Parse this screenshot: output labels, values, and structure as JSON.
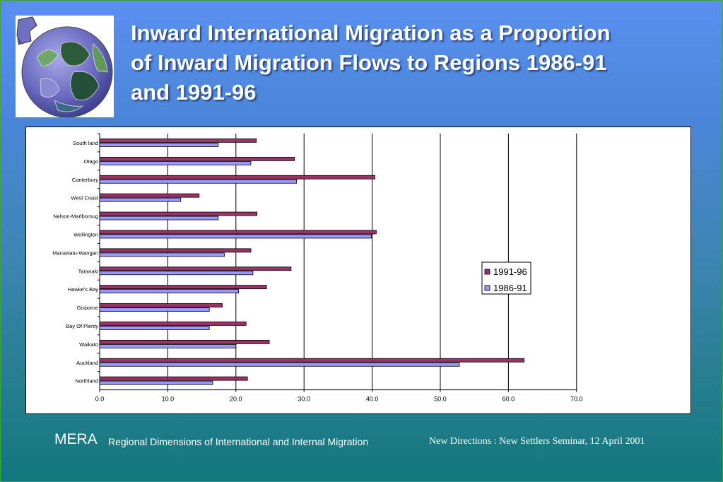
{
  "slide": {
    "title_lines": [
      "Inward International Migration as a Proportion",
      "of Inward Migration Flows to Regions 1986-91",
      "and 1991-96"
    ],
    "footer_brand": "MERA",
    "footer_subtitle": "Regional Dimensions of International and Internal Migration",
    "footer_event": "New Directions : New Settlers Seminar, 12 April 2001"
  },
  "logo": {
    "icon": "globe-puzzle-icon"
  },
  "colors": {
    "series_1991_96": "#993366",
    "series_1986_91": "#9999ff",
    "bg_top": "#5a8ff0",
    "bg_bottom": "#13787c"
  },
  "chart_data": {
    "type": "bar",
    "orientation": "horizontal",
    "categories": [
      "Southland",
      "Otago",
      "Canterbury",
      "West Coast",
      "Nelson-Marlborough",
      "Wellington",
      "Manawatu-Wanganui",
      "Taranaki",
      "Hawke's Bay",
      "Gisborne",
      "Bay Of Plenty",
      "Waikato",
      "Auckland",
      "Northland"
    ],
    "category_labels": [
      "South land",
      "Otago",
      "Canterbury",
      "West  Coast",
      "Nelson-Marlboroug",
      "Wellington",
      "Manawatu-Wangan",
      "Taranaki",
      "Hawke's Bay",
      "Gisborne",
      "Bay  Of  Plenty",
      "Waikato",
      "Auckland",
      "Northland"
    ],
    "series": [
      {
        "name": "1991-96",
        "values": [
          23.0,
          28.6,
          40.4,
          14.6,
          23.1,
          40.6,
          22.2,
          28.1,
          24.5,
          18.0,
          21.5,
          24.9,
          62.3,
          21.7
        ]
      },
      {
        "name": "1986-91",
        "values": [
          17.4,
          22.2,
          28.9,
          11.9,
          17.4,
          39.9,
          18.3,
          22.5,
          20.4,
          16.1,
          16.1,
          20.0,
          52.8,
          16.6
        ]
      }
    ],
    "xlim": [
      0,
      70
    ],
    "xticks": [
      "0.0",
      "10.0",
      "20.0",
      "30.0",
      "40.0",
      "50.0",
      "60.0",
      "70.0"
    ],
    "grid": "vertical",
    "legend_position": "right"
  }
}
